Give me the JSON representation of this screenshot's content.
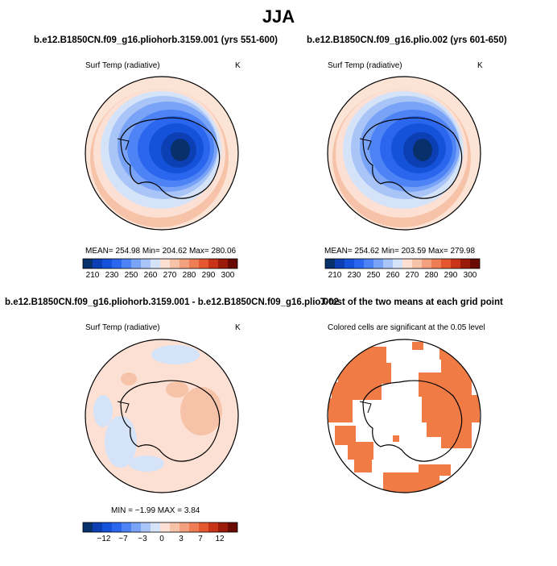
{
  "figure": {
    "title": "JJA"
  },
  "panels": [
    {
      "title": "b.e12.B1850CN.f09_g16.pliohorb.3159.001 (yrs 551-600)",
      "variable": "Surf Temp (radiative)",
      "units": "K",
      "stats": "MEAN= 254.98   Min= 204.62   Max= 280.06",
      "colorbar_ticks": [
        "210",
        "230",
        "250",
        "260",
        "270",
        "280",
        "290",
        "300"
      ]
    },
    {
      "title": "b.e12.B1850CN.f09_g16.plio.002 (yrs 601-650)",
      "variable": "Surf Temp (radiative)",
      "units": "K",
      "stats": "MEAN= 254.62   Min= 203.59   Max= 279.98",
      "colorbar_ticks": [
        "210",
        "230",
        "250",
        "260",
        "270",
        "280",
        "290",
        "300"
      ]
    },
    {
      "title": "b.e12.B1850CN.f09_g16.pliohorb.3159.001 - b.e12.B1850CN.f09_g16.plio.002",
      "variable": "Surf Temp (radiative)",
      "units": "K",
      "stats": "MIN =  −1.99  MAX =   3.84",
      "colorbar_ticks": [
        "−12",
        "−7",
        "−3",
        "0",
        "3",
        "7",
        "12"
      ]
    },
    {
      "title": "T-test of the two means at each grid point",
      "subtitle": "Colored cells are significant at the 0.05 level"
    }
  ],
  "colors": {
    "abs_scale": [
      "#08306b",
      "#0b3fb3",
      "#1452d9",
      "#2a66ee",
      "#4d83f5",
      "#79a3f7",
      "#a9c4f7",
      "#d5e3f9",
      "#fbe0d3",
      "#f7c3a8",
      "#f3a07f",
      "#ee7d55",
      "#e4572f",
      "#c93418",
      "#9b1b0a",
      "#6a0b03"
    ],
    "diff_scale": [
      "#08306b",
      "#0b3fb3",
      "#1452d9",
      "#2a66ee",
      "#4d83f5",
      "#79a3f7",
      "#a9c4f7",
      "#d5e3f9",
      "#fbe0d3",
      "#f7c3a8",
      "#f3a07f",
      "#ee7d55",
      "#e4572f",
      "#c93418",
      "#9b1b0a",
      "#6a0b03"
    ],
    "significant": "#f07b45"
  }
}
